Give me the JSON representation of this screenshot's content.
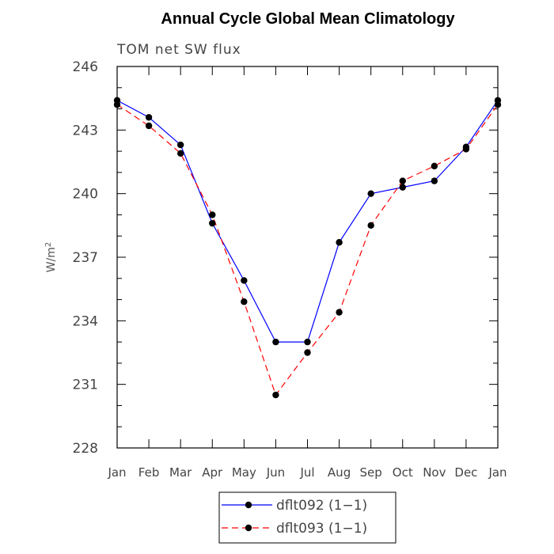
{
  "chart_data": {
    "type": "line",
    "title": "Annual Cycle Global Mean Climatology",
    "subtitle": "TOM net SW flux",
    "xlabel": "",
    "ylabel": "W/m",
    "ylabel_superscript": "2",
    "categories": [
      "Jan",
      "Feb",
      "Mar",
      "Apr",
      "May",
      "Jun",
      "Jul",
      "Aug",
      "Sep",
      "Oct",
      "Nov",
      "Dec",
      "Jan"
    ],
    "ylim": [
      228,
      246
    ],
    "yticks": [
      228,
      231,
      234,
      237,
      240,
      243,
      246
    ],
    "yticks_labels": [
      "228",
      "231",
      "234",
      "237",
      "240",
      "243",
      "246"
    ],
    "grid": false,
    "legend_position": "bottom-center",
    "series": [
      {
        "name": "dflt092 (1−1)",
        "color": "#0000ff",
        "dash": "solid",
        "values": [
          244.4,
          243.6,
          242.3,
          238.6,
          235.9,
          233.0,
          233.0,
          237.7,
          240.0,
          240.3,
          240.6,
          242.2,
          244.4
        ]
      },
      {
        "name": "dflt093 (1−1)",
        "color": "#ff0000",
        "dash": "dashed",
        "values": [
          244.2,
          243.2,
          241.9,
          239.0,
          234.9,
          230.5,
          232.5,
          234.4,
          238.5,
          240.6,
          241.3,
          242.1,
          244.2
        ]
      }
    ]
  }
}
